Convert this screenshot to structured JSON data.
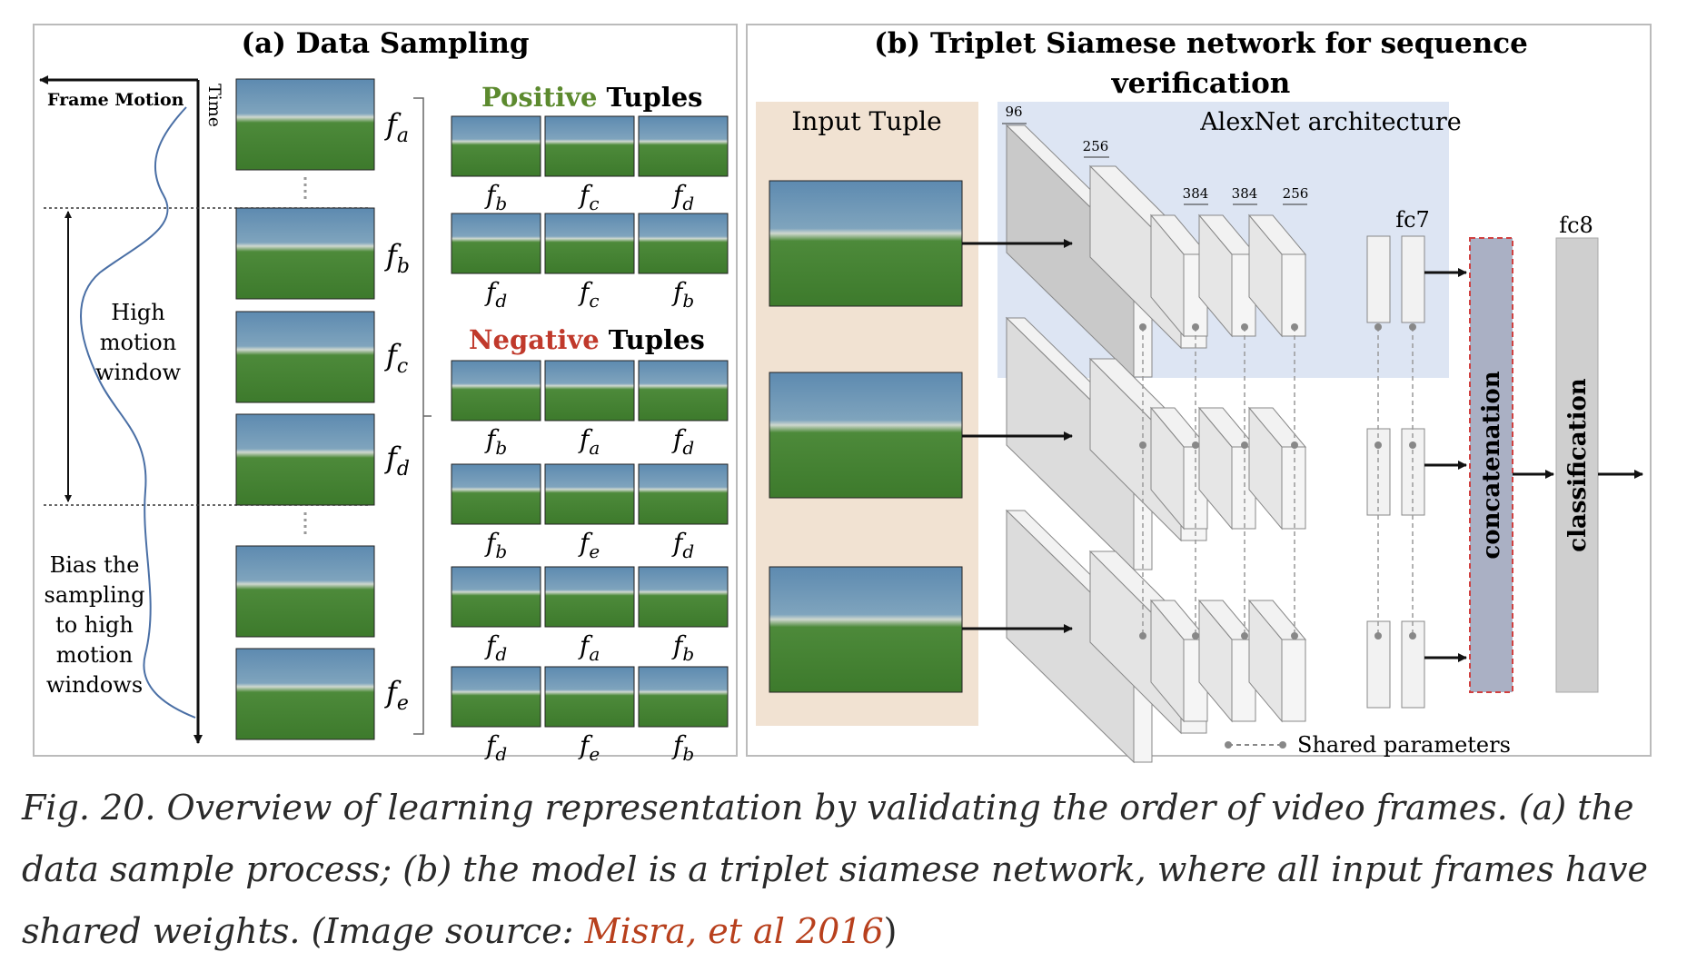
{
  "panel_a": {
    "title": "(a) Data Sampling",
    "frame_motion_label": "Frame Motion",
    "time_label": "Time",
    "high_motion_lines": [
      "High",
      "motion",
      "window"
    ],
    "bias_lines": [
      "Bias the",
      "sampling",
      "to high",
      "motion",
      "windows"
    ],
    "frame_labels": [
      "f",
      "f",
      "f",
      "f",
      "f"
    ],
    "frame_subs": [
      "a",
      "b",
      "c",
      "d",
      "e"
    ],
    "positive_word": "Positive",
    "negative_word": "Negative",
    "tuples_word": "Tuples",
    "positive_tuples": [
      [
        [
          "f",
          "b"
        ],
        [
          "f",
          "c"
        ],
        [
          "f",
          "d"
        ]
      ],
      [
        [
          "f",
          "d"
        ],
        [
          "f",
          "c"
        ],
        [
          "f",
          "b"
        ]
      ]
    ],
    "negative_tuples": [
      [
        [
          "f",
          "b"
        ],
        [
          "f",
          "a"
        ],
        [
          "f",
          "d"
        ]
      ],
      [
        [
          "f",
          "b"
        ],
        [
          "f",
          "e"
        ],
        [
          "f",
          "d"
        ]
      ],
      [
        [
          "f",
          "d"
        ],
        [
          "f",
          "a"
        ],
        [
          "f",
          "b"
        ]
      ],
      [
        [
          "f",
          "d"
        ],
        [
          "f",
          "e"
        ],
        [
          "f",
          "b"
        ]
      ]
    ]
  },
  "panel_b": {
    "title_line1": "(b) Triplet Siamese network for sequence",
    "title_line2": "verification",
    "input_tuple_label": "Input Tuple",
    "alexnet_label": "AlexNet architecture",
    "channel_labels": [
      "96",
      "256",
      "384",
      "384",
      "256"
    ],
    "fc7_label": "fc7",
    "fc8_label": "fc8",
    "concat_label": "concatenation",
    "class_label": "classification",
    "shared_label": "Shared parameters"
  },
  "colors": {
    "positive": "#5c8a2e",
    "negative": "#c0392b",
    "curve": "#4a6fa5",
    "input_bg": "#f1e2d2",
    "alexnet_bg": "#dde5f3",
    "concat_fill": "#aab0c4",
    "concat_border": "#d04040",
    "link": "#b8401d"
  },
  "caption": {
    "text": "Fig. 20. Overview of learning representation by validating the order of video frames. (a) the data sample process; (b) the model is a triplet siamese network, where all input frames have shared weights. (Image source: ",
    "link_text": "Misra, et al 2016",
    "close": ")"
  }
}
